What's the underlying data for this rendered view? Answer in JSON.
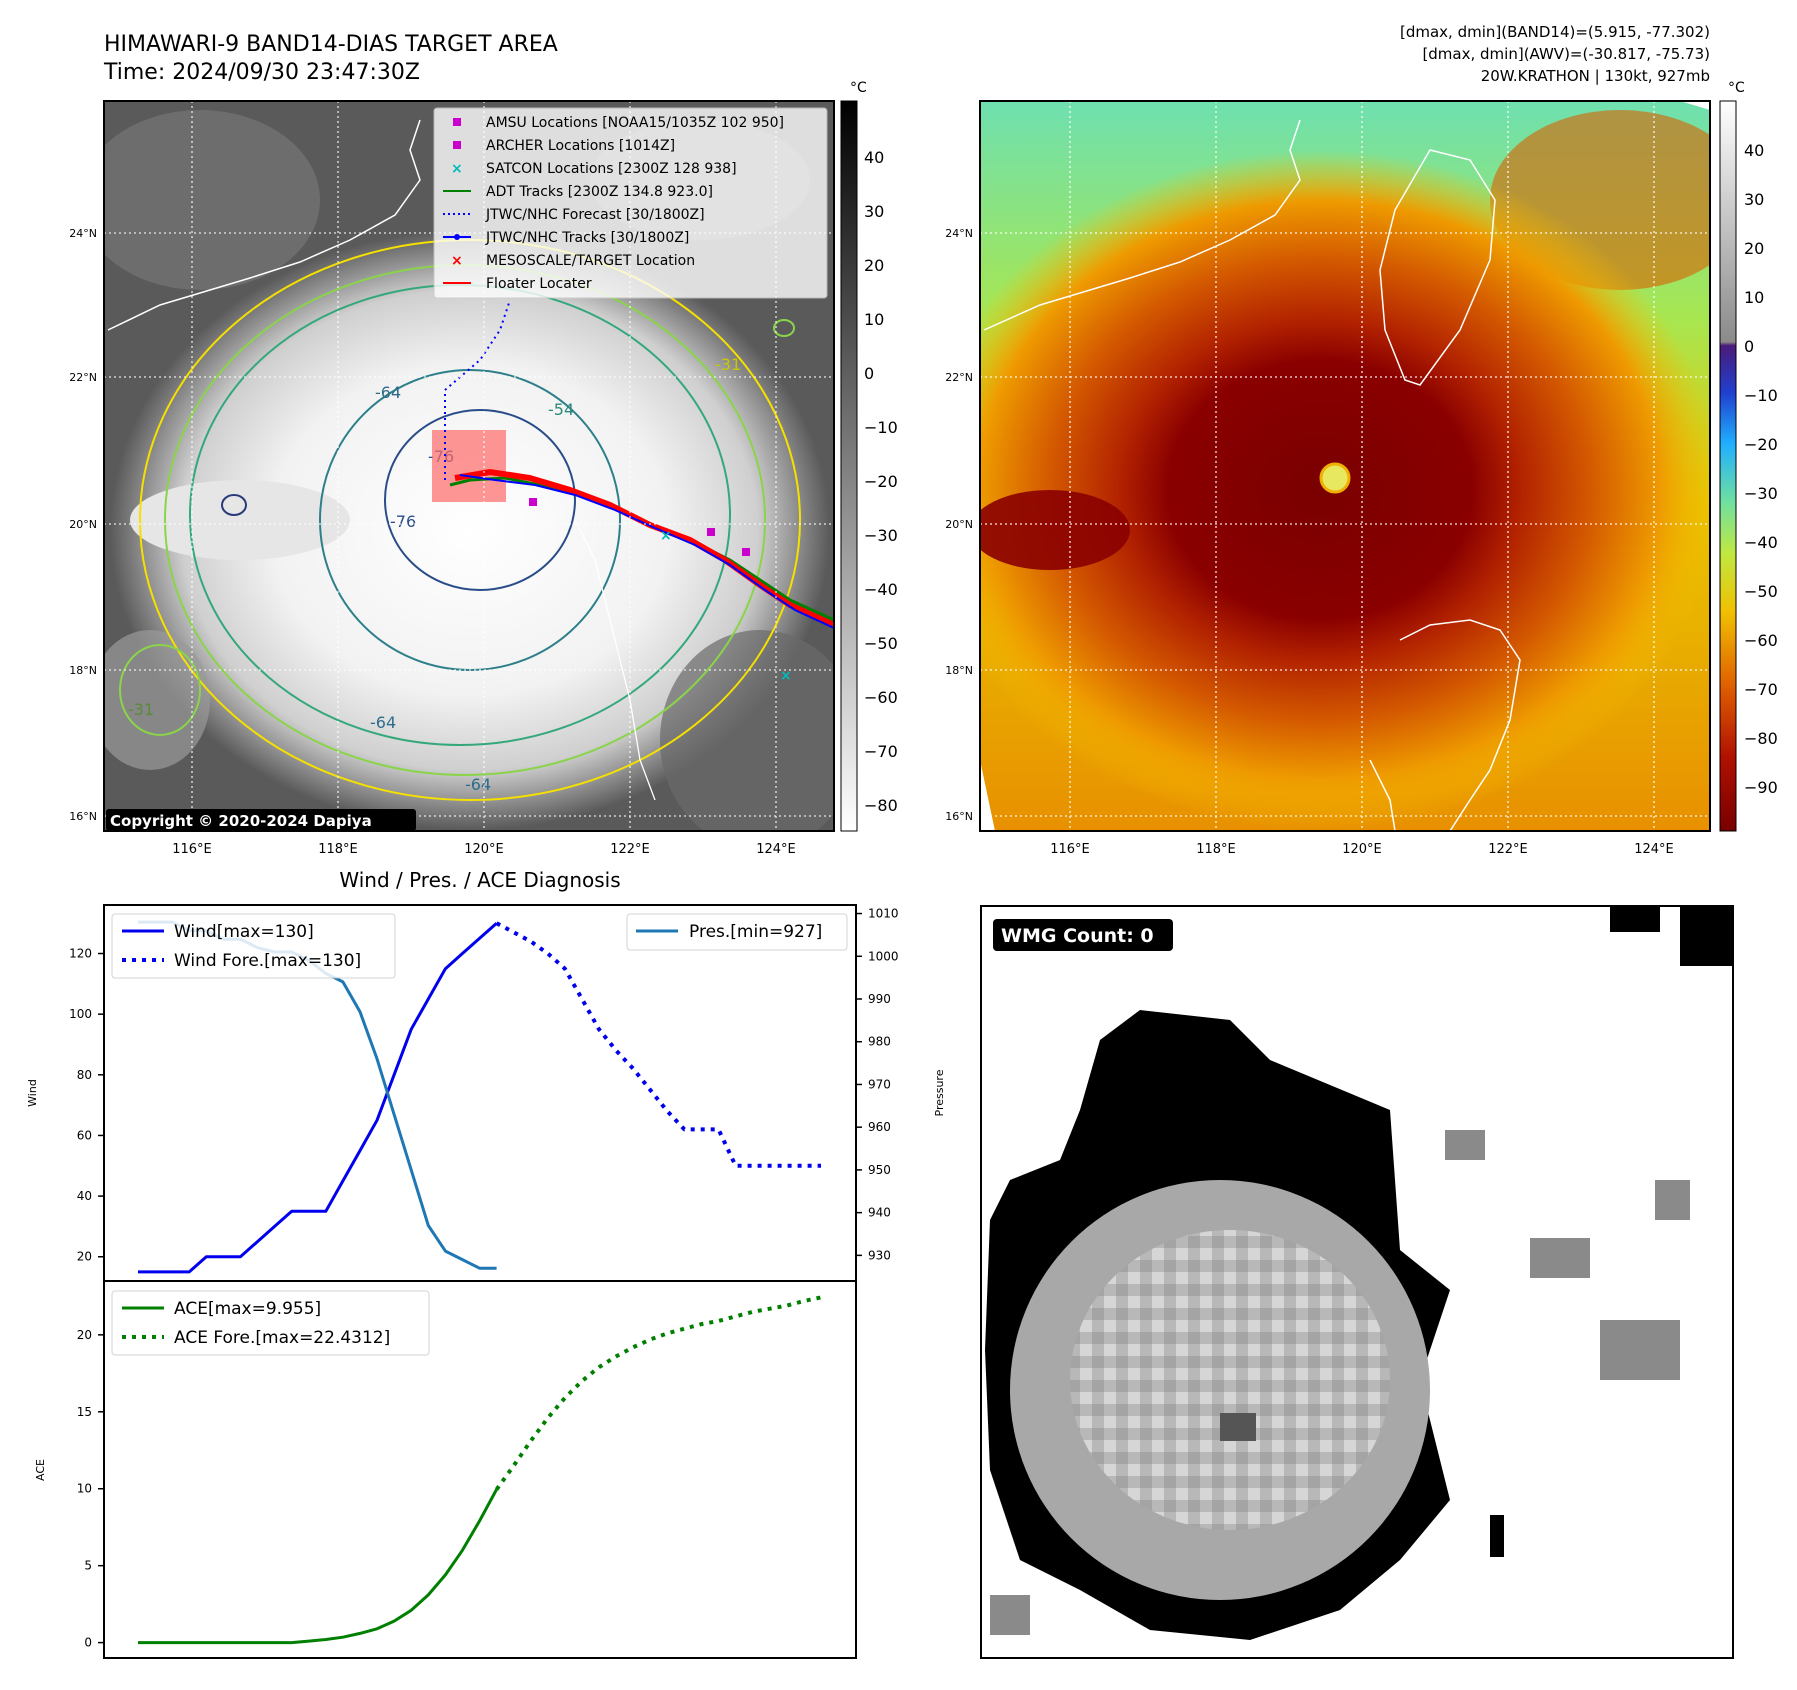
{
  "header": {
    "title_line1": "HIMAWARI-9 BAND14-DIAS TARGET AREA",
    "title_line2": "Time: 2024/09/30 23:47:30Z",
    "info_line1": "[dmax, dmin](BAND14)=(5.915, -77.302)",
    "info_line2": "[dmax, dmin](AWV)=(-30.817, -75.73)",
    "info_line3": "20W.KRATHON | 130kt, 927mb"
  },
  "map_common": {
    "lat_labels": [
      "24°N",
      "22°N",
      "20°N",
      "18°N",
      "16°N"
    ],
    "lon_labels": [
      "116°E",
      "118°E",
      "120°E",
      "122°E",
      "124°E"
    ],
    "unit": "°C"
  },
  "map_ir": {
    "colorbar_ticks": [
      "40",
      "30",
      "20",
      "10",
      "0",
      "−10",
      "−20",
      "−30",
      "−40",
      "−50",
      "−60",
      "−70",
      "−80"
    ],
    "legend": [
      {
        "label": "AMSU Locations [NOAA15/1035Z 102 950]",
        "color": "#cc00cc",
        "marker": "square"
      },
      {
        "label": "ARCHER Locations [1014Z]",
        "color": "#cc00cc",
        "marker": "square"
      },
      {
        "label": "SATCON Locations [2300Z 128 938]",
        "color": "#00bbbb",
        "marker": "x"
      },
      {
        "label": "ADT Tracks [2300Z 134.8 923.0]",
        "color": "#008000",
        "marker": "line"
      },
      {
        "label": "JTWC/NHC Forecast [30/1800Z]",
        "color": "#0000ff",
        "marker": "dotted"
      },
      {
        "label": "JTWC/NHC Tracks [30/1800Z]",
        "color": "#0000ff",
        "marker": "dotline"
      },
      {
        "label": "MESOSCALE/TARGET Location",
        "color": "#ff0000",
        "marker": "x"
      },
      {
        "label": "Floater Locater",
        "color": "#ff0000",
        "marker": "line"
      }
    ],
    "contour_labels": [
      "-64",
      "-54",
      "-76",
      "-76",
      "-31",
      "-31",
      "-64",
      "-64"
    ],
    "copyright": "Copyright © 2020-2024 Dapiya"
  },
  "map_awv": {
    "colorbar_ticks": [
      "40",
      "30",
      "20",
      "10",
      "0",
      "−10",
      "−20",
      "−30",
      "−40",
      "−50",
      "−60",
      "−70",
      "−80",
      "−90"
    ]
  },
  "chart_data": [
    {
      "type": "line",
      "title": "Wind / Pres. / ACE Diagnosis",
      "ylabel": "Wind",
      "ylabel_right": "Pressure",
      "ylim": [
        12,
        136
      ],
      "ylim_right": [
        924,
        1012
      ],
      "yticks": [
        20,
        40,
        60,
        80,
        100,
        120
      ],
      "yticks_right": [
        930,
        940,
        950,
        960,
        970,
        980,
        990,
        1000,
        1010
      ],
      "series": [
        {
          "name": "Wind[max=130]",
          "axis": "left",
          "color": "#0000ee",
          "style": "solid",
          "x": [
            0,
            1,
            2,
            3,
            4,
            5,
            6,
            7,
            8,
            9,
            10,
            11,
            12,
            13,
            14,
            15,
            16,
            17,
            18,
            19,
            20,
            21
          ],
          "values": [
            15,
            15,
            15,
            15,
            20,
            20,
            20,
            25,
            30,
            35,
            35,
            35,
            45,
            55,
            65,
            80,
            95,
            105,
            115,
            120,
            125,
            130
          ]
        },
        {
          "name": "Wind Fore.[max=130]",
          "axis": "left",
          "color": "#0000ee",
          "style": "dotted",
          "x": [
            21,
            22,
            23,
            24,
            25,
            26,
            27,
            28,
            29,
            30,
            31,
            32,
            33,
            34,
            35,
            36,
            37,
            38,
            39,
            40
          ],
          "values": [
            130,
            127,
            124,
            120,
            115,
            105,
            95,
            88,
            82,
            75,
            68,
            62,
            62,
            62,
            50,
            50,
            50,
            50,
            50,
            50
          ]
        },
        {
          "name": "Pres.[min=927]",
          "axis": "right",
          "color": "#1f77b4",
          "style": "solid",
          "x": [
            0,
            1,
            2,
            3,
            4,
            5,
            6,
            7,
            8,
            9,
            10,
            11,
            12,
            13,
            14,
            15,
            16,
            17,
            18,
            19,
            20,
            21
          ],
          "values": [
            1008,
            1008,
            1008,
            1006,
            1006,
            1004,
            1004,
            1002,
            1001,
            1001,
            999,
            996,
            994,
            987,
            976,
            963,
            950,
            937,
            931,
            929,
            927,
            927
          ]
        }
      ]
    },
    {
      "type": "line",
      "ylabel": "ACE",
      "ylim": [
        -1,
        23.5
      ],
      "yticks": [
        0,
        5,
        10,
        15,
        20
      ],
      "series": [
        {
          "name": "ACE[max=9.955]",
          "color": "#008000",
          "style": "solid",
          "x": [
            0,
            1,
            2,
            3,
            4,
            5,
            6,
            7,
            8,
            9,
            10,
            11,
            12,
            13,
            14,
            15,
            16,
            17,
            18,
            19,
            20,
            21
          ],
          "values": [
            0,
            0,
            0,
            0,
            0,
            0,
            0,
            0,
            0,
            0,
            0.1,
            0.2,
            0.35,
            0.6,
            0.9,
            1.4,
            2.1,
            3.1,
            4.4,
            6.0,
            7.9,
            9.955
          ]
        },
        {
          "name": "ACE Fore.[max=22.4312]",
          "color": "#008000",
          "style": "dotted",
          "x": [
            21,
            22,
            23,
            24,
            25,
            26,
            27,
            28,
            29,
            30,
            31,
            32,
            33,
            34,
            35,
            36,
            37,
            38,
            39,
            40
          ],
          "values": [
            9.955,
            11.5,
            13.1,
            14.6,
            15.9,
            17.0,
            17.9,
            18.6,
            19.2,
            19.7,
            20.1,
            20.4,
            20.7,
            20.9,
            21.2,
            21.5,
            21.7,
            21.9,
            22.2,
            22.4312
          ]
        }
      ]
    }
  ],
  "wmg": {
    "label": "WMG Count: 0"
  }
}
